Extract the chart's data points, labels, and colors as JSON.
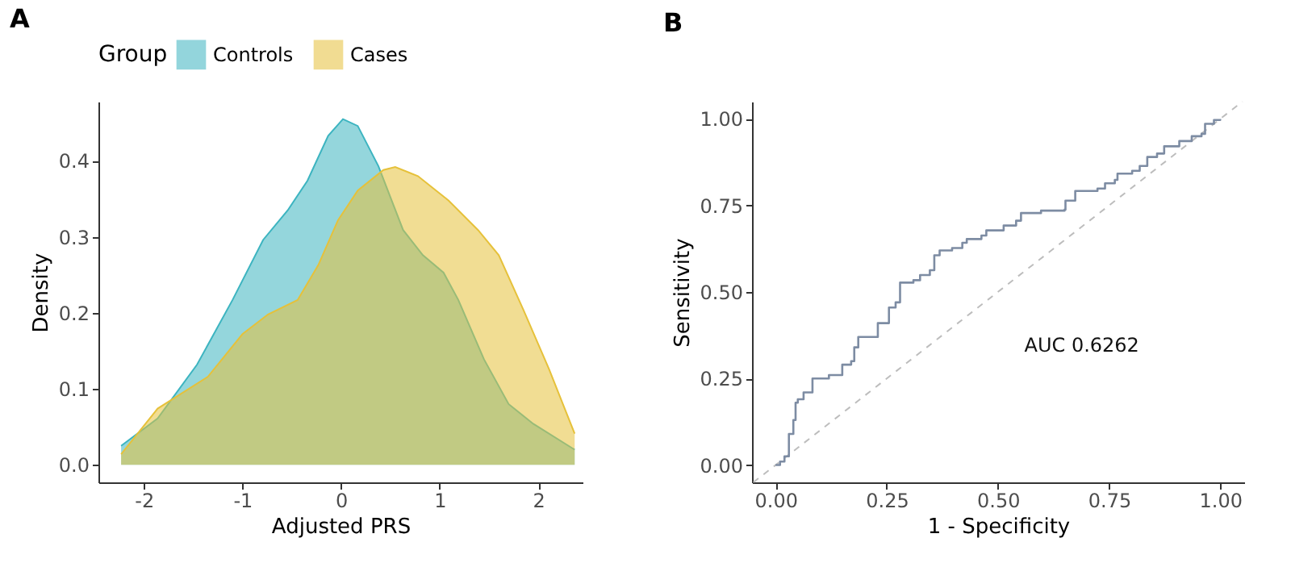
{
  "chart_data": [
    {
      "type": "area",
      "title": "A",
      "xlabel": "Adjusted PRS",
      "ylabel": "Density",
      "legend_title": "Group",
      "legend": "top",
      "grid": false,
      "xlim": [
        -2.46,
        2.45
      ],
      "xticks": [
        -2,
        -1,
        0,
        1,
        2
      ],
      "ylim": [
        -0.023,
        0.478
      ],
      "yticks": [
        {
          "value": 0,
          "label": "0.0"
        },
        0.1,
        0.2,
        0.3,
        0.4
      ],
      "series": [
        {
          "name": "Controls",
          "color": "#3cb4c0",
          "x": [
            -2.23,
            -1.86,
            -1.46,
            -1.1,
            -0.79,
            -0.54,
            -0.34,
            -0.13,
            0.02,
            0.17,
            0.38,
            0.63,
            0.83,
            1.04,
            1.19,
            1.45,
            1.7,
            1.95,
            2.37
          ],
          "values": [
            0.025,
            0.061,
            0.132,
            0.217,
            0.296,
            0.335,
            0.374,
            0.433,
            0.455,
            0.446,
            0.393,
            0.309,
            0.276,
            0.253,
            0.217,
            0.139,
            0.08,
            0.054,
            0.02
          ]
        },
        {
          "name": "Cases",
          "color": "#e6c13a",
          "x": [
            -2.23,
            -1.86,
            -1.35,
            -1.0,
            -0.74,
            -0.44,
            -0.23,
            -0.03,
            0.17,
            0.43,
            0.55,
            0.78,
            1.09,
            1.39,
            1.6,
            1.85,
            2.11,
            2.37
          ],
          "values": [
            0.014,
            0.074,
            0.116,
            0.172,
            0.198,
            0.217,
            0.263,
            0.322,
            0.361,
            0.388,
            0.392,
            0.38,
            0.348,
            0.309,
            0.276,
            0.204,
            0.126,
            0.041
          ]
        }
      ]
    },
    {
      "type": "step",
      "title": "B",
      "xlabel": "1 - Specificity",
      "ylabel": "Sensitivity",
      "grid": false,
      "xlim": [
        -0.053,
        1.054
      ],
      "xticks": [
        {
          "value": 0,
          "label": "0.00"
        },
        {
          "value": 0.25,
          "label": "0.25"
        },
        {
          "value": 0.5,
          "label": "0.50"
        },
        {
          "value": 0.75,
          "label": "0.75"
        },
        {
          "value": 1,
          "label": "1.00"
        }
      ],
      "ylim": [
        -0.05,
        1.05
      ],
      "yticks": [
        {
          "value": 0,
          "label": "0.00"
        },
        {
          "value": 0.25,
          "label": "0.25"
        },
        {
          "value": 0.5,
          "label": "0.50"
        },
        {
          "value": 0.75,
          "label": "0.75"
        },
        {
          "value": 1,
          "label": "1.00"
        }
      ],
      "annotations": [
        "AUC 0.6262"
      ],
      "series": [
        {
          "type": "line",
          "line_style": "dashed",
          "color": "#bdbdbd",
          "x": [
            -0.05,
            1.05
          ],
          "values": [
            -0.05,
            1.05
          ]
        },
        {
          "color": "#7d8ca3",
          "x": [
            0,
            0.01,
            0.02,
            0.03,
            0.03,
            0.04,
            0.045,
            0.05,
            0.063,
            0.083,
            0.11,
            0.12,
            0.14,
            0.15,
            0.17,
            0.177,
            0.186,
            0.23,
            0.23,
            0.25,
            0.255,
            0.27,
            0.28,
            0.31,
            0.325,
            0.347,
            0.357,
            0.369,
            0.397,
            0.42,
            0.43,
            0.463,
            0.474,
            0.508,
            0.513,
            0.541,
            0.552,
            0.597,
            0.65,
            0.652,
            0.674,
            0.724,
            0.741,
            0.763,
            0.769,
            0.802,
            0.819,
            0.836,
            0.858,
            0.874,
            0.908,
            0.936,
            0.958,
            0.966,
            0.986,
            1
          ],
          "values": [
            0,
            0.01,
            0.025,
            0.04,
            0.09,
            0.13,
            0.18,
            0.19,
            0.21,
            0.25,
            0.25,
            0.26,
            0.26,
            0.29,
            0.3,
            0.34,
            0.37,
            0.375,
            0.41,
            0.41,
            0.455,
            0.47,
            0.527,
            0.534,
            0.549,
            0.563,
            0.606,
            0.62,
            0.627,
            0.642,
            0.653,
            0.663,
            0.678,
            0.678,
            0.692,
            0.706,
            0.728,
            0.735,
            0.738,
            0.764,
            0.792,
            0.799,
            0.814,
            0.824,
            0.842,
            0.85,
            0.864,
            0.89,
            0.9,
            0.921,
            0.936,
            0.95,
            0.957,
            0.986,
            0.997,
            1
          ]
        }
      ]
    }
  ]
}
